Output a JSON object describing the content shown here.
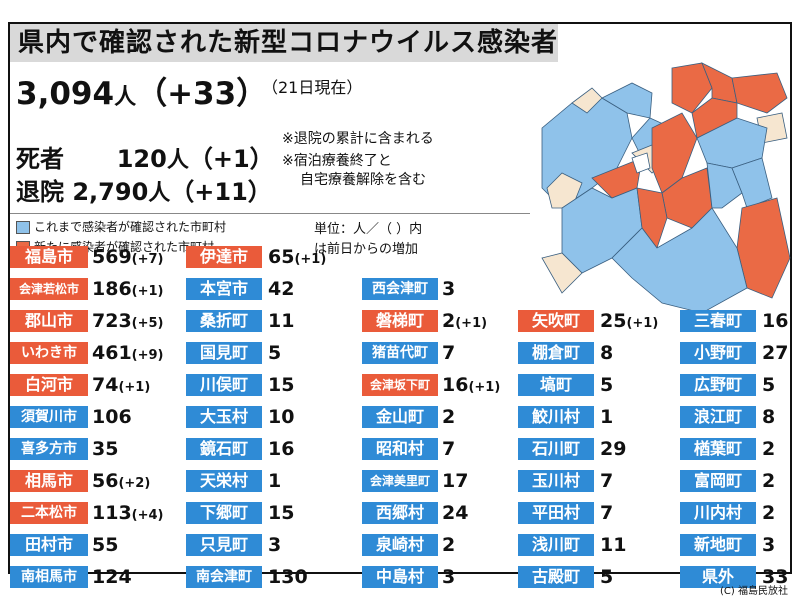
{
  "title": "県内で確認された新型コロナウイルス感染者",
  "total": {
    "value": "3,094",
    "unit": "人",
    "delta": "（+33）",
    "as_of": "（21日現在）"
  },
  "deaths": {
    "label": "死者",
    "value": "120",
    "unit": "人",
    "delta": "（+1）"
  },
  "recovered": {
    "label": "退院",
    "value": "2,790",
    "unit": "人",
    "delta": "（+11）"
  },
  "notes": [
    "※退院の累計に含まれる",
    "※宿泊療養終了と",
    "自宅療養解除を含む"
  ],
  "legend": {
    "existing": "これまで感染者が確認された市町村",
    "new": "新たに感染者が確認された市町村",
    "unit_line1": "単位：人／（ ）内",
    "unit_line2": "は前日からの増加"
  },
  "colors": {
    "blue": "#2f8bd6",
    "red": "#ea5b3a",
    "map_blue": "#8fc2ea",
    "map_red": "#ea6a45",
    "map_tan": "#f6e6d0"
  },
  "columns": [
    [
      {
        "name": "福島市",
        "value": "569",
        "delta": "(+7)",
        "new": true
      },
      {
        "name": "会津若松市",
        "value": "186",
        "delta": "(+1)",
        "new": true
      },
      {
        "name": "郡山市",
        "value": "723",
        "delta": "(+5)",
        "new": true
      },
      {
        "name": "いわき市",
        "value": "461",
        "delta": "(+9)",
        "new": true
      },
      {
        "name": "白河市",
        "value": "74",
        "delta": "(+1)",
        "new": true
      },
      {
        "name": "須賀川市",
        "value": "106",
        "delta": "",
        "new": false
      },
      {
        "name": "喜多方市",
        "value": "35",
        "delta": "",
        "new": false
      },
      {
        "name": "相馬市",
        "value": "56",
        "delta": "(+2)",
        "new": true
      },
      {
        "name": "二本松市",
        "value": "113",
        "delta": "(+4)",
        "new": true
      },
      {
        "name": "田村市",
        "value": "55",
        "delta": "",
        "new": false
      },
      {
        "name": "南相馬市",
        "value": "124",
        "delta": "",
        "new": false
      }
    ],
    [
      {
        "name": "伊達市",
        "value": "65",
        "delta": "(+1)",
        "new": true
      },
      {
        "name": "本宮市",
        "value": "42",
        "delta": "",
        "new": false
      },
      {
        "name": "桑折町",
        "value": "11",
        "delta": "",
        "new": false
      },
      {
        "name": "国見町",
        "value": "5",
        "delta": "",
        "new": false
      },
      {
        "name": "川俣町",
        "value": "15",
        "delta": "",
        "new": false
      },
      {
        "name": "大玉村",
        "value": "10",
        "delta": "",
        "new": false
      },
      {
        "name": "鏡石町",
        "value": "16",
        "delta": "",
        "new": false
      },
      {
        "name": "天栄村",
        "value": "1",
        "delta": "",
        "new": false
      },
      {
        "name": "下郷町",
        "value": "15",
        "delta": "",
        "new": false
      },
      {
        "name": "只見町",
        "value": "3",
        "delta": "",
        "new": false
      },
      {
        "name": "南会津町",
        "value": "130",
        "delta": "",
        "new": false
      }
    ],
    [
      {
        "name": "西会津町",
        "value": "3",
        "delta": "",
        "new": false
      },
      {
        "name": "磐梯町",
        "value": "2",
        "delta": "(+1)",
        "new": true
      },
      {
        "name": "猪苗代町",
        "value": "7",
        "delta": "",
        "new": false
      },
      {
        "name": "会津坂下町",
        "value": "16",
        "delta": "(+1)",
        "new": true
      },
      {
        "name": "金山町",
        "value": "2",
        "delta": "",
        "new": false
      },
      {
        "name": "昭和村",
        "value": "7",
        "delta": "",
        "new": false
      },
      {
        "name": "会津美里町",
        "value": "17",
        "delta": "",
        "new": false
      },
      {
        "name": "西郷村",
        "value": "24",
        "delta": "",
        "new": false
      },
      {
        "name": "泉崎村",
        "value": "2",
        "delta": "",
        "new": false
      },
      {
        "name": "中島村",
        "value": "3",
        "delta": "",
        "new": false
      }
    ],
    [
      {
        "name": "矢吹町",
        "value": "25",
        "delta": "(+1)",
        "new": true
      },
      {
        "name": "棚倉町",
        "value": "8",
        "delta": "",
        "new": false
      },
      {
        "name": "塙町",
        "value": "5",
        "delta": "",
        "new": false
      },
      {
        "name": "鮫川村",
        "value": "1",
        "delta": "",
        "new": false
      },
      {
        "name": "石川町",
        "value": "29",
        "delta": "",
        "new": false
      },
      {
        "name": "玉川村",
        "value": "7",
        "delta": "",
        "new": false
      },
      {
        "name": "平田村",
        "value": "7",
        "delta": "",
        "new": false
      },
      {
        "name": "浅川町",
        "value": "11",
        "delta": "",
        "new": false
      },
      {
        "name": "古殿町",
        "value": "5",
        "delta": "",
        "new": false
      }
    ],
    [
      {
        "name": "三春町",
        "value": "16",
        "delta": "",
        "new": false
      },
      {
        "name": "小野町",
        "value": "27",
        "delta": "",
        "new": false
      },
      {
        "name": "広野町",
        "value": "5",
        "delta": "",
        "new": false
      },
      {
        "name": "浪江町",
        "value": "8",
        "delta": "",
        "new": false
      },
      {
        "name": "楢葉町",
        "value": "2",
        "delta": "",
        "new": false
      },
      {
        "name": "富岡町",
        "value": "2",
        "delta": "",
        "new": false
      },
      {
        "name": "川内村",
        "value": "2",
        "delta": "",
        "new": false
      },
      {
        "name": "新地町",
        "value": "3",
        "delta": "",
        "new": false
      },
      {
        "name": "県外",
        "value": "33",
        "delta": "",
        "new": false
      }
    ]
  ],
  "copyright": "(C) 福島民放社"
}
